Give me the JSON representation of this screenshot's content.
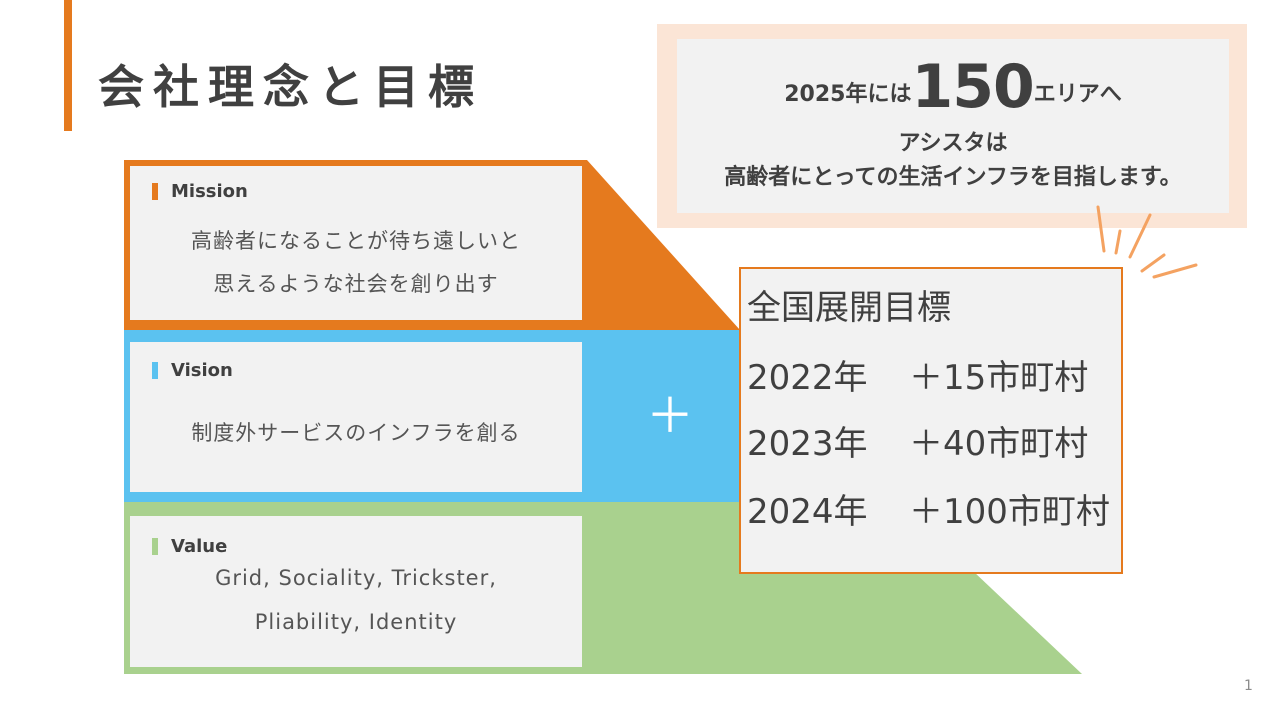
{
  "title": "会社理念と目標",
  "mission": {
    "label": "Mission",
    "line1": "高齢者になることが待ち遠しいと",
    "line2": "思えるような社会を創り出す"
  },
  "vision": {
    "label": "Vision",
    "line1": "制度外サービスのインフラを創る"
  },
  "value": {
    "label": "Value",
    "line1": "Grid, Sociality, Trickster,",
    "line2": "Pliability, Identity"
  },
  "plus_sign": "＋",
  "callout": {
    "prefix": "2025年には",
    "number": "150",
    "suffix": "エリアへ",
    "line2": "アシスタは",
    "line3": "高齢者にとっての生活インフラを目指します。"
  },
  "goals": {
    "title": "全国展開目標",
    "rows": [
      {
        "year": "2022年",
        "target": "＋15市町村"
      },
      {
        "year": "2023年",
        "target": "＋40市町村"
      },
      {
        "year": "2024年",
        "target": "＋100市町村"
      }
    ]
  },
  "page_number": "1",
  "colors": {
    "orange": "#E57A1E",
    "blue": "#5BC2F0",
    "green": "#A9D18E",
    "card": "#F2F2F2",
    "callout_bg": "#FBE5D6"
  }
}
